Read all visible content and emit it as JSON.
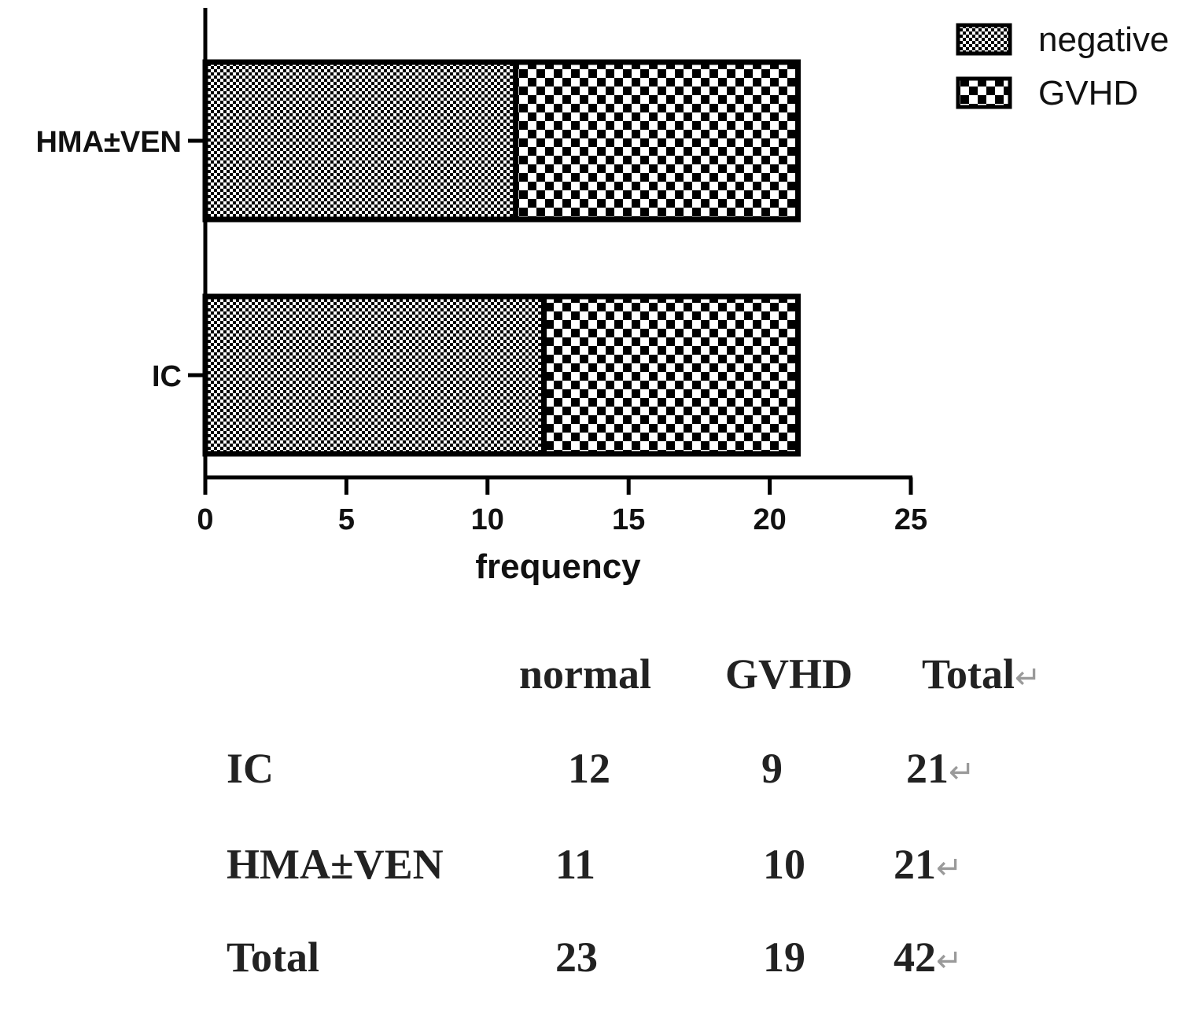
{
  "chart_data": {
    "type": "bar",
    "orientation": "horizontal",
    "stacked": true,
    "categories": [
      "HMA±VEN",
      "IC"
    ],
    "series": [
      {
        "name": "negative",
        "values": [
          11,
          12
        ],
        "pattern": "fine-checker"
      },
      {
        "name": "GVHD",
        "values": [
          10,
          9
        ],
        "pattern": "coarse-checker"
      }
    ],
    "xlabel": "frequency",
    "ylabel": "",
    "xlim": [
      0,
      25
    ],
    "xticks": [
      "0",
      "5",
      "10",
      "15",
      "20",
      "25"
    ],
    "legend_position": "top-right",
    "grid": false
  },
  "table": {
    "headers": [
      "normal",
      "GVHD",
      "Total"
    ],
    "rows": [
      {
        "label": "IC",
        "values": [
          "12",
          "9",
          "21"
        ]
      },
      {
        "label": "HMA±VEN",
        "values": [
          "11",
          "10",
          "21"
        ]
      },
      {
        "label": "Total",
        "values": [
          "23",
          "19",
          "42"
        ]
      }
    ],
    "return_mark": "↵"
  },
  "colors": {
    "ink": "#000000",
    "paper": "#ffffff"
  }
}
